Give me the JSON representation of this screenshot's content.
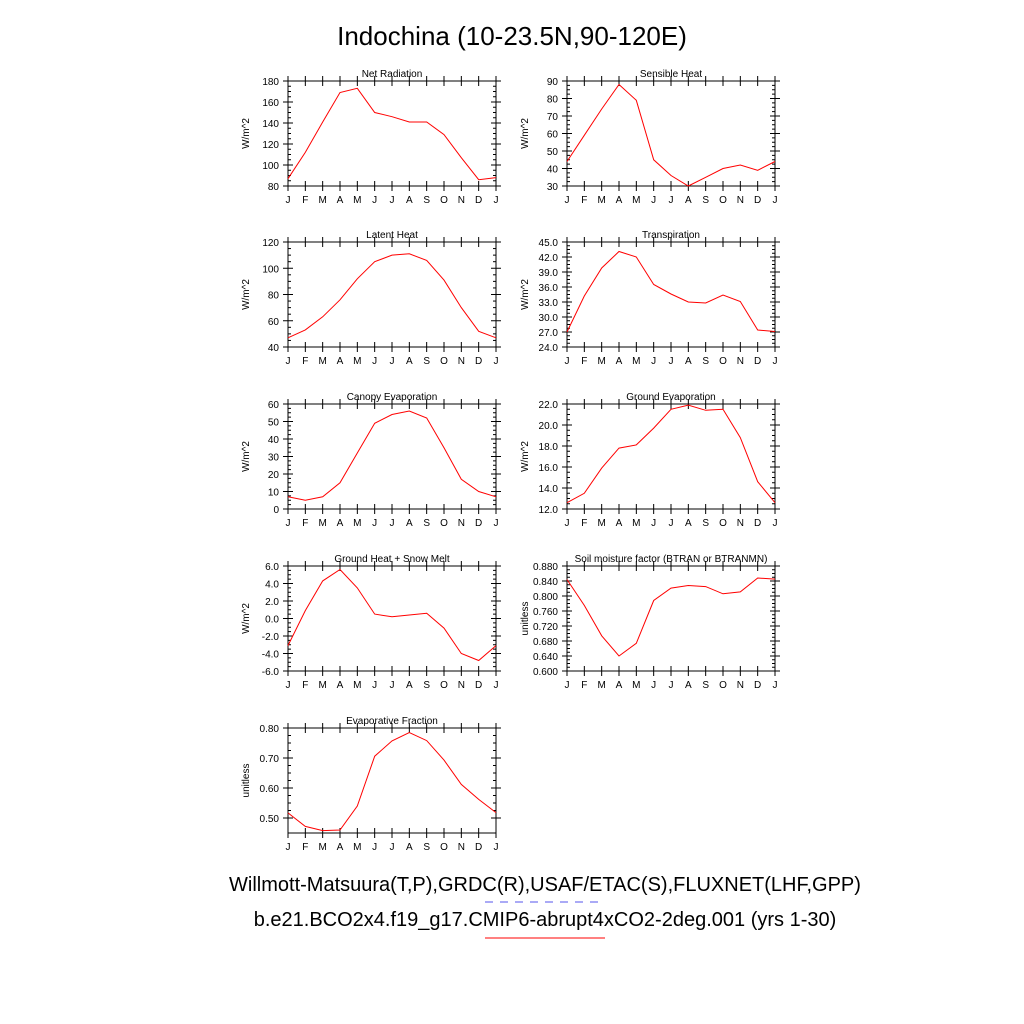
{
  "figure": {
    "title": "Indochina (10-23.5N,90-120E)",
    "legend": [
      {
        "label": "Willmott-Matsuura(T,P),GRDC(R),USAF/ETAC(S),FLUXNET(LHF,GPP)",
        "color": "#5555ee",
        "dash": "dashed"
      },
      {
        "label": "b.e21.BCO2x4.f19_g17.CMIP6-abrupt4xCO2-2deg.001 (yrs 1-30)",
        "color": "#ff0000",
        "dash": "solid"
      }
    ]
  },
  "chart_data": [
    {
      "type": "line",
      "title": "Net Radiation",
      "xlabel": "",
      "ylabel": "W/m^2",
      "categories": [
        "J",
        "F",
        "M",
        "A",
        "M",
        "J",
        "J",
        "A",
        "S",
        "O",
        "N",
        "D",
        "J"
      ],
      "ylim": [
        80,
        180
      ],
      "yticks": [
        80,
        100,
        120,
        140,
        160,
        180
      ],
      "yticklabels": [
        "80",
        "100",
        "120",
        "140",
        "160",
        "180"
      ],
      "series": [
        {
          "name": "b.e21.BCO2x4.f19_g17.CMIP6-abrupt4xCO2-2deg.001 (yrs 1-30)",
          "color": "#ff0000",
          "values": [
            87,
            112,
            141,
            169,
            173,
            150,
            146,
            141,
            141,
            129,
            107,
            86,
            88
          ]
        }
      ]
    },
    {
      "type": "line",
      "title": "Sensible Heat",
      "xlabel": "",
      "ylabel": "W/m^2",
      "categories": [
        "J",
        "F",
        "M",
        "A",
        "M",
        "J",
        "J",
        "A",
        "S",
        "O",
        "N",
        "D",
        "J"
      ],
      "ylim": [
        30,
        90
      ],
      "yticks": [
        30,
        40,
        50,
        60,
        70,
        80,
        90
      ],
      "yticklabels": [
        "30",
        "40",
        "50",
        "60",
        "70",
        "80",
        "90"
      ],
      "series": [
        {
          "name": "b.e21.BCO2x4.f19_g17.CMIP6-abrupt4xCO2-2deg.001 (yrs 1-30)",
          "color": "#ff0000",
          "values": [
            44,
            59,
            74,
            88,
            79,
            45,
            36,
            30,
            35,
            40,
            42,
            39,
            44
          ]
        }
      ]
    },
    {
      "type": "line",
      "title": "Latent Heat",
      "xlabel": "",
      "ylabel": "W/m^2",
      "categories": [
        "J",
        "F",
        "M",
        "A",
        "M",
        "J",
        "J",
        "A",
        "S",
        "O",
        "N",
        "D",
        "J"
      ],
      "ylim": [
        40,
        120
      ],
      "yticks": [
        40,
        60,
        80,
        100,
        120
      ],
      "yticklabels": [
        "40",
        "60",
        "80",
        "100",
        "120"
      ],
      "series": [
        {
          "name": "b.e21.BCO2x4.f19_g17.CMIP6-abrupt4xCO2-2deg.001 (yrs 1-30)",
          "color": "#ff0000",
          "values": [
            47,
            53,
            63,
            76,
            92,
            105,
            110,
            111,
            106,
            91,
            70,
            52,
            47
          ]
        }
      ]
    },
    {
      "type": "line",
      "title": "Transpiration",
      "xlabel": "",
      "ylabel": "W/m^2",
      "categories": [
        "J",
        "F",
        "M",
        "A",
        "M",
        "J",
        "J",
        "A",
        "S",
        "O",
        "N",
        "D",
        "J"
      ],
      "ylim": [
        24,
        45
      ],
      "yticks": [
        24,
        27,
        30,
        33,
        36,
        39,
        42,
        45
      ],
      "yticklabels": [
        "24.0",
        "27.0",
        "30.0",
        "33.0",
        "36.0",
        "39.0",
        "42.0",
        "45.0"
      ],
      "series": [
        {
          "name": "b.e21.BCO2x4.f19_g17.CMIP6-abrupt4xCO2-2deg.001 (yrs 1-30)",
          "color": "#ff0000",
          "values": [
            27.0,
            34.2,
            39.8,
            43.1,
            42.0,
            36.5,
            34.6,
            33.0,
            32.8,
            34.4,
            33.1,
            27.4,
            27.1
          ]
        }
      ]
    },
    {
      "type": "line",
      "title": "Canopy Evaporation",
      "xlabel": "",
      "ylabel": "W/m^2",
      "categories": [
        "J",
        "F",
        "M",
        "A",
        "M",
        "J",
        "J",
        "A",
        "S",
        "O",
        "N",
        "D",
        "J"
      ],
      "ylim": [
        0,
        60
      ],
      "yticks": [
        0,
        10,
        20,
        30,
        40,
        50,
        60
      ],
      "yticklabels": [
        "0",
        "10",
        "20",
        "30",
        "40",
        "50",
        "60"
      ],
      "series": [
        {
          "name": "b.e21.BCO2x4.f19_g17.CMIP6-abrupt4xCO2-2deg.001 (yrs 1-30)",
          "color": "#ff0000",
          "values": [
            7,
            5,
            7,
            15,
            32,
            49,
            54,
            56,
            52,
            35,
            17,
            10,
            7
          ]
        }
      ]
    },
    {
      "type": "line",
      "title": "Ground Evaporation",
      "xlabel": "",
      "ylabel": "W/m^2",
      "categories": [
        "J",
        "F",
        "M",
        "A",
        "M",
        "J",
        "J",
        "A",
        "S",
        "O",
        "N",
        "D",
        "J"
      ],
      "ylim": [
        12,
        22
      ],
      "yticks": [
        12,
        14,
        16,
        18,
        20,
        22
      ],
      "yticklabels": [
        "12.0",
        "14.0",
        "16.0",
        "18.0",
        "20.0",
        "22.0"
      ],
      "series": [
        {
          "name": "b.e21.BCO2x4.f19_g17.CMIP6-abrupt4xCO2-2deg.001 (yrs 1-30)",
          "color": "#ff0000",
          "values": [
            12.6,
            13.5,
            15.9,
            17.8,
            18.1,
            19.7,
            21.5,
            21.9,
            21.4,
            21.5,
            18.8,
            14.6,
            12.6
          ]
        }
      ]
    },
    {
      "type": "line",
      "title": "Ground Heat + Snow Melt",
      "xlabel": "",
      "ylabel": "W/m^2",
      "categories": [
        "J",
        "F",
        "M",
        "A",
        "M",
        "J",
        "J",
        "A",
        "S",
        "O",
        "N",
        "D",
        "J"
      ],
      "ylim": [
        -6,
        6
      ],
      "yticks": [
        -6,
        -4,
        -2,
        0,
        2,
        4,
        6
      ],
      "yticklabels": [
        "-6.0",
        "-4.0",
        "-2.0",
        "0.0",
        "2.0",
        "4.0",
        "6.0"
      ],
      "series": [
        {
          "name": "b.e21.BCO2x4.f19_g17.CMIP6-abrupt4xCO2-2deg.001 (yrs 1-30)",
          "color": "#ff0000",
          "values": [
            -3.1,
            0.9,
            4.3,
            5.6,
            3.5,
            0.5,
            0.2,
            0.4,
            0.6,
            -1.1,
            -4.0,
            -4.8,
            -3.1
          ]
        }
      ]
    },
    {
      "type": "line",
      "title": "Soil moisture factor (BTRAN or BTRANMN)",
      "xlabel": "",
      "ylabel": "unitless",
      "categories": [
        "J",
        "F",
        "M",
        "A",
        "M",
        "J",
        "J",
        "A",
        "S",
        "O",
        "N",
        "D",
        "J"
      ],
      "ylim": [
        0.6,
        0.88
      ],
      "yticks": [
        0.6,
        0.64,
        0.68,
        0.72,
        0.76,
        0.8,
        0.84,
        0.88
      ],
      "yticklabels": [
        "0.600",
        "0.640",
        "0.680",
        "0.720",
        "0.760",
        "0.800",
        "0.840",
        "0.880"
      ],
      "series": [
        {
          "name": "b.e21.BCO2x4.f19_g17.CMIP6-abrupt4xCO2-2deg.001 (yrs 1-30)",
          "color": "#ff0000",
          "values": [
            0.844,
            0.775,
            0.694,
            0.64,
            0.674,
            0.788,
            0.821,
            0.828,
            0.825,
            0.806,
            0.811,
            0.848,
            0.845
          ]
        }
      ]
    },
    {
      "type": "line",
      "title": "Evaporative Fraction",
      "xlabel": "",
      "ylabel": "unitless",
      "categories": [
        "J",
        "F",
        "M",
        "A",
        "M",
        "J",
        "J",
        "A",
        "S",
        "O",
        "N",
        "D",
        "J"
      ],
      "ylim": [
        0.45,
        0.8
      ],
      "yticks": [
        0.5,
        0.6,
        0.7,
        0.8
      ],
      "yticklabels": [
        "0.50",
        "0.60",
        "0.70",
        "0.80"
      ],
      "series": [
        {
          "name": "b.e21.BCO2x4.f19_g17.CMIP6-abrupt4xCO2-2deg.001 (yrs 1-30)",
          "color": "#ff0000",
          "values": [
            0.517,
            0.472,
            0.458,
            0.46,
            0.54,
            0.706,
            0.757,
            0.785,
            0.758,
            0.693,
            0.612,
            0.562,
            0.518
          ]
        }
      ]
    }
  ]
}
